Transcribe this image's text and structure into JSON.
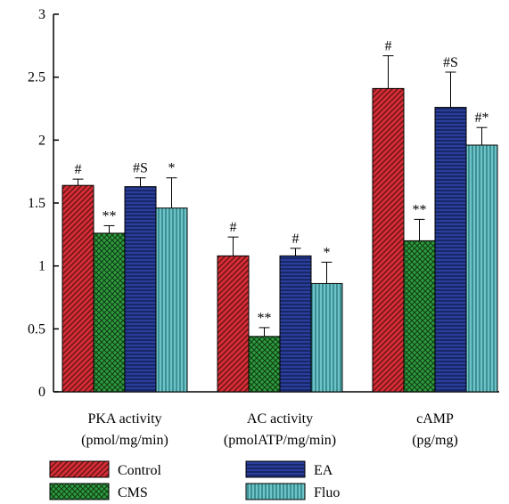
{
  "chart_data": {
    "type": "bar",
    "categories": [
      [
        "PKA activity",
        "(pmol/mg/min)"
      ],
      [
        "AC activity",
        "(pmolATP/mg/min)"
      ],
      [
        "cAMP",
        "(pg/mg)"
      ]
    ],
    "ylim": [
      0,
      3
    ],
    "yticks": [
      "0",
      "0.5",
      "1",
      "1.5",
      "2",
      "2.5",
      "3"
    ],
    "legend_position": "bottom",
    "series": [
      {
        "name": "Control",
        "color": "#d42d35",
        "pattern": "diagonal",
        "values": [
          1.64,
          1.08,
          2.41
        ],
        "errors": [
          0.05,
          0.15,
          0.26
        ],
        "annotations": [
          "#",
          "#",
          "#"
        ]
      },
      {
        "name": "CMS",
        "color": "#2f9a3e",
        "pattern": "crosshatch",
        "values": [
          1.26,
          0.44,
          1.2
        ],
        "errors": [
          0.06,
          0.07,
          0.17
        ],
        "annotations": [
          "**",
          "**",
          "**"
        ]
      },
      {
        "name": "EA",
        "color": "#2a3f9c",
        "pattern": "horizontal",
        "values": [
          1.63,
          1.08,
          2.26
        ],
        "errors": [
          0.07,
          0.06,
          0.28
        ],
        "annotations": [
          "#S",
          "#",
          "#S"
        ]
      },
      {
        "name": "Fluo",
        "color": "#6cc4c8",
        "pattern": "vertical",
        "values": [
          1.46,
          0.86,
          1.96
        ],
        "errors": [
          0.24,
          0.17,
          0.14
        ],
        "annotations": [
          "*",
          "*",
          "#*"
        ]
      }
    ]
  }
}
